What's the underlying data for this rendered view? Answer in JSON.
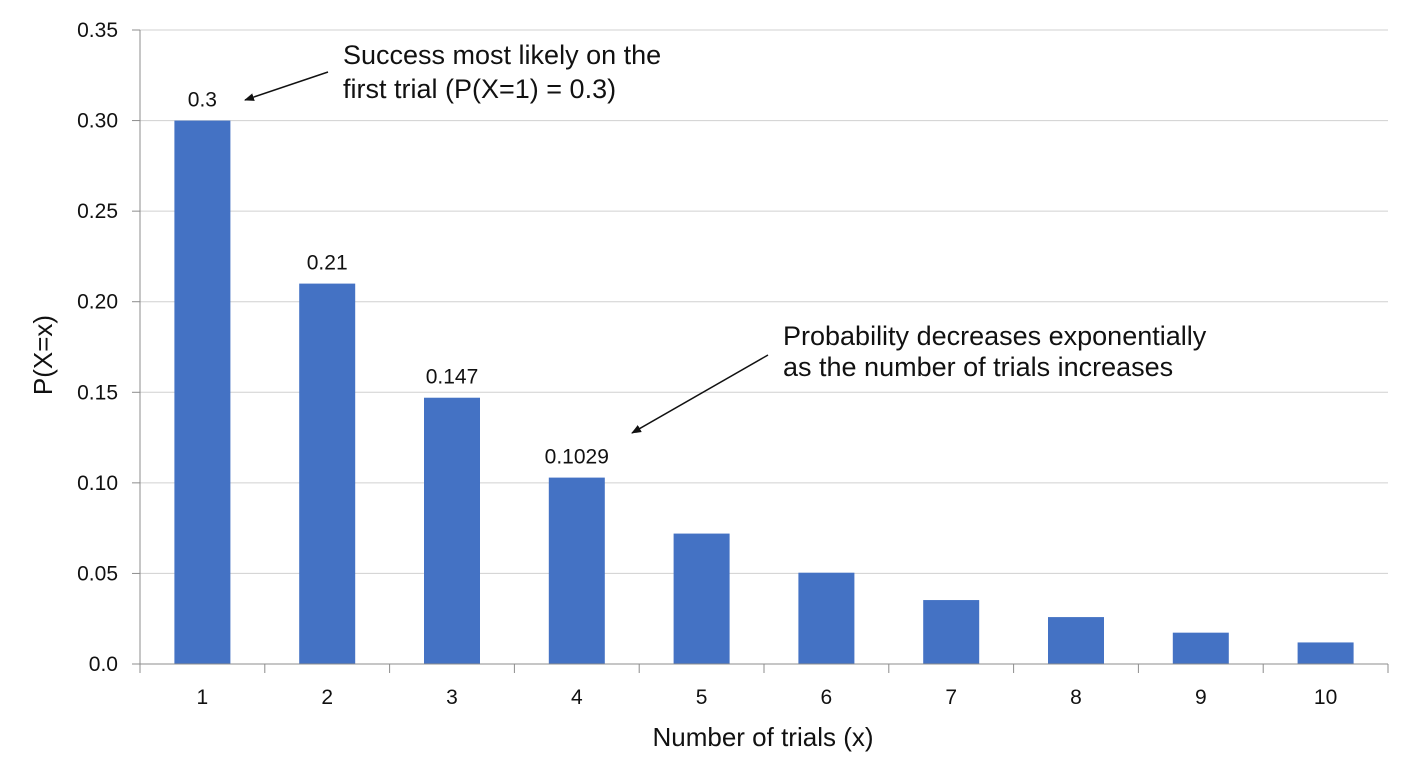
{
  "chart_data": {
    "type": "bar",
    "categories": [
      "1",
      "2",
      "3",
      "4",
      "5",
      "6",
      "7",
      "8",
      "9",
      "10"
    ],
    "values": [
      0.3,
      0.21,
      0.147,
      0.1029,
      0.072,
      0.0504,
      0.0353,
      0.0259,
      0.0173,
      0.0119
    ],
    "data_labels": [
      "0.3",
      "0.21",
      "0.147",
      "0.1029",
      "",
      "",
      "",
      "",
      "",
      ""
    ],
    "bar_color": "#4472c4",
    "title": "",
    "xlabel": "Number of trials (x)",
    "ylabel": "P(X=x)",
    "ylim": [
      0,
      0.35
    ],
    "yticks": [
      0,
      0.05,
      0.1,
      0.15,
      0.2,
      0.25,
      0.3,
      0.35
    ],
    "ytick_labels": [
      "0.0",
      "0.05",
      "0.10",
      "0.15",
      "0.20",
      "0.25",
      "0.30",
      "0.35"
    ],
    "grid": true,
    "legend": "none",
    "annotations": [
      {
        "text_lines": [
          "Success most likely on the",
          "first trial (P(X=1) = 0.3)"
        ],
        "target_category": "1"
      },
      {
        "text_lines": [
          "Probability decreases exponentially",
          "as the number of trials increases"
        ],
        "target_category": "4"
      }
    ]
  }
}
